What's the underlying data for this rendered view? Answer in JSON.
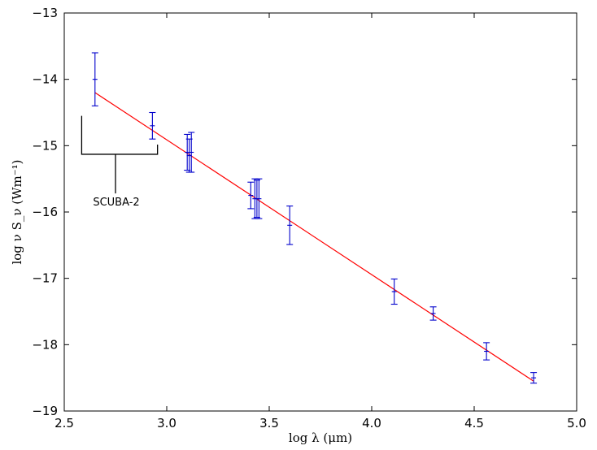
{
  "chart_data": {
    "type": "scatter",
    "xlabel": "log λ (μm)",
    "ylabel": "log ν S_ν (Wm⁻¹)",
    "xlim": [
      2.5,
      5.0
    ],
    "ylim": [
      -19,
      -13
    ],
    "xticks": [
      2.5,
      3.0,
      3.5,
      4.0,
      4.5,
      5.0
    ],
    "xtick_labels": [
      "2.5",
      "3.0",
      "3.5",
      "4.0",
      "4.5",
      "5.0"
    ],
    "yticks": [
      -19,
      -18,
      -17,
      -16,
      -15,
      -14,
      -13
    ],
    "ytick_labels": [
      "−19",
      "−18",
      "−17",
      "−16",
      "−15",
      "−14",
      "−13"
    ],
    "grid": false,
    "series": [
      {
        "type": "errorbar",
        "color": "#0000cc",
        "points": [
          {
            "x": 2.65,
            "y": -14.0,
            "yerr": 0.4
          },
          {
            "x": 2.93,
            "y": -14.7,
            "yerr": 0.2
          },
          {
            "x": 3.1,
            "y": -15.1,
            "yerr": 0.27
          },
          {
            "x": 3.11,
            "y": -15.15,
            "yerr": 0.25
          },
          {
            "x": 3.12,
            "y": -15.1,
            "yerr": 0.3
          },
          {
            "x": 3.41,
            "y": -15.75,
            "yerr": 0.2
          },
          {
            "x": 3.43,
            "y": -15.8,
            "yerr": 0.3
          },
          {
            "x": 3.44,
            "y": -15.8,
            "yerr": 0.28
          },
          {
            "x": 3.45,
            "y": -15.8,
            "yerr": 0.3
          },
          {
            "x": 3.6,
            "y": -16.2,
            "yerr": 0.29
          },
          {
            "x": 4.11,
            "y": -17.2,
            "yerr": 0.19
          },
          {
            "x": 4.3,
            "y": -17.53,
            "yerr": 0.1
          },
          {
            "x": 4.56,
            "y": -18.1,
            "yerr": 0.13
          },
          {
            "x": 4.79,
            "y": -18.5,
            "yerr": 0.08
          }
        ]
      },
      {
        "type": "line",
        "color": "#ff0000",
        "x": [
          2.65,
          4.79
        ],
        "y": [
          -14.2,
          -18.55
        ]
      }
    ],
    "annotation": {
      "text": "SCUBA-2",
      "bracket_x": [
        2.585,
        2.955
      ],
      "bracket_top_y": -14.55,
      "bracket_base_y": -15.13,
      "bracket_stem_bottom_y": -15.72,
      "stem_x": 2.75
    }
  }
}
